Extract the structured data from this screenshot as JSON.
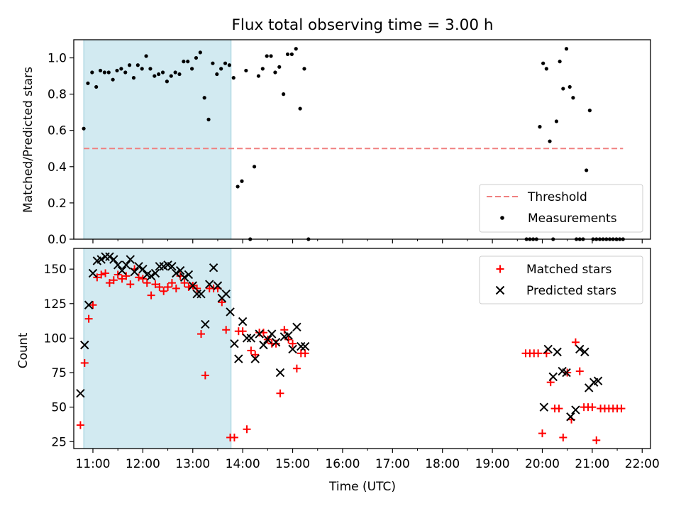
{
  "figure": {
    "title": "Flux total observing time = 3.00 h",
    "xlabel": "Time (UTC)"
  },
  "colors": {
    "band": "#add8e6",
    "threshold": "#f08080",
    "measurements": "#000000",
    "matched": "#ff0000",
    "predicted": "#000000"
  },
  "chart_data": [
    {
      "type": "scatter",
      "ylabel": "Matched/Predicted stars",
      "ylim": [
        0,
        1.1
      ],
      "yticks": [
        0.0,
        0.2,
        0.4,
        0.6,
        0.8,
        1.0
      ],
      "ytick_labels": [
        "0.0",
        "0.2",
        "0.4",
        "0.6",
        "0.8",
        "1.0"
      ],
      "xlim": [
        "10:37",
        "22:10"
      ],
      "xticks": [
        "11:00",
        "12:00",
        "13:00",
        "14:00",
        "15:00",
        "16:00",
        "17:00",
        "18:00",
        "19:00",
        "20:00",
        "21:00",
        "22:00"
      ],
      "show_xtick_labels": false,
      "shaded_region": {
        "start": "10:49",
        "end": "13:46"
      },
      "legend_position": "lower right",
      "series": [
        {
          "name": "Threshold",
          "kind": "dashed-line",
          "x": [
            "10:49",
            "21:37"
          ],
          "y": [
            0.5,
            0.5
          ]
        },
        {
          "name": "Measurements",
          "kind": "dots",
          "x": [
            "10:49",
            "10:54",
            "10:59",
            "11:04",
            "11:09",
            "11:14",
            "11:19",
            "11:24",
            "11:29",
            "11:34",
            "11:39",
            "11:44",
            "11:49",
            "11:54",
            "11:59",
            "12:04",
            "12:09",
            "12:14",
            "12:19",
            "12:24",
            "12:29",
            "12:34",
            "12:39",
            "12:44",
            "12:49",
            "12:54",
            "12:59",
            "13:04",
            "13:09",
            "13:14",
            "13:19",
            "13:24",
            "13:29",
            "13:34",
            "13:39",
            "13:44",
            "13:49",
            "13:54",
            "13:59",
            "14:04",
            "14:09",
            "14:14",
            "14:19",
            "14:24",
            "14:29",
            "14:34",
            "14:39",
            "14:44",
            "14:49",
            "14:54",
            "14:59",
            "15:04",
            "15:09",
            "15:14",
            "15:19",
            "19:41",
            "19:45",
            "19:49",
            "19:53",
            "19:57",
            "20:01",
            "20:05",
            "20:09",
            "20:13",
            "20:17",
            "20:21",
            "20:25",
            "20:29",
            "20:33",
            "20:37",
            "20:41",
            "20:45",
            "20:49",
            "20:53",
            "20:57",
            "21:01",
            "21:05",
            "21:09",
            "21:13",
            "21:17",
            "21:21",
            "21:25",
            "21:29",
            "21:33",
            "21:37"
          ],
          "y": [
            0.61,
            0.86,
            0.92,
            0.84,
            0.93,
            0.92,
            0.92,
            0.88,
            0.93,
            0.94,
            0.92,
            0.96,
            0.89,
            0.96,
            0.94,
            1.01,
            0.94,
            0.9,
            0.91,
            0.92,
            0.87,
            0.9,
            0.92,
            0.91,
            0.98,
            0.98,
            0.94,
            1.0,
            1.03,
            0.78,
            0.66,
            0.97,
            0.91,
            0.94,
            0.97,
            0.96,
            0.89,
            0.29,
            0.32,
            0.93,
            0.0,
            0.4,
            0.9,
            0.94,
            1.01,
            1.01,
            0.92,
            0.95,
            0.8,
            1.02,
            1.02,
            1.05,
            0.72,
            0.94,
            0.0,
            0.0,
            0.0,
            0.0,
            0.0,
            0.62,
            0.97,
            0.94,
            0.54,
            0.0,
            0.65,
            0.98,
            0.83,
            1.05,
            0.84,
            0.78,
            0.0,
            0.0,
            0.0,
            0.38,
            0.71,
            0.0,
            0.0,
            0.0,
            0.0,
            0.0,
            0.0,
            0.0,
            0.0,
            0.0,
            0.0
          ]
        }
      ]
    },
    {
      "type": "scatter",
      "ylabel": "Count",
      "ylim": [
        20,
        165
      ],
      "yticks": [
        25,
        50,
        75,
        100,
        125,
        150
      ],
      "ytick_labels": [
        "25",
        "50",
        "75",
        "100",
        "125",
        "150"
      ],
      "xlim": [
        "10:37",
        "22:10"
      ],
      "xticks": [
        "11:00",
        "12:00",
        "13:00",
        "14:00",
        "15:00",
        "16:00",
        "17:00",
        "18:00",
        "19:00",
        "20:00",
        "21:00",
        "22:00"
      ],
      "xtick_labels": [
        "11:00",
        "12:00",
        "13:00",
        "14:00",
        "15:00",
        "16:00",
        "17:00",
        "18:00",
        "19:00",
        "20:00",
        "21:00",
        "22:00"
      ],
      "shaded_region": {
        "start": "10:49",
        "end": "13:46"
      },
      "legend_position": "upper right",
      "series": [
        {
          "name": "Matched stars",
          "marker": "plus",
          "x": [
            "10:45",
            "10:50",
            "10:55",
            "11:00",
            "11:05",
            "11:10",
            "11:15",
            "11:20",
            "11:25",
            "11:30",
            "11:35",
            "11:40",
            "11:45",
            "11:50",
            "11:55",
            "12:00",
            "12:05",
            "12:10",
            "12:15",
            "12:20",
            "12:25",
            "12:30",
            "12:35",
            "12:40",
            "12:45",
            "12:50",
            "12:55",
            "13:00",
            "13:05",
            "13:10",
            "13:15",
            "13:20",
            "13:25",
            "13:30",
            "13:35",
            "13:40",
            "13:45",
            "13:50",
            "13:55",
            "14:00",
            "14:05",
            "14:10",
            "14:15",
            "14:20",
            "14:25",
            "14:30",
            "14:35",
            "14:40",
            "14:45",
            "14:50",
            "14:55",
            "15:00",
            "15:05",
            "15:10",
            "15:15",
            "19:40",
            "19:45",
            "19:50",
            "19:55",
            "20:00",
            "20:05",
            "20:10",
            "20:15",
            "20:20",
            "20:25",
            "20:30",
            "20:35",
            "20:40",
            "20:45",
            "20:50",
            "20:55",
            "21:00",
            "21:05",
            "21:10",
            "21:15",
            "21:20",
            "21:25",
            "21:30",
            "21:35"
          ],
          "y": [
            37,
            82,
            114,
            124,
            144,
            146,
            147,
            140,
            142,
            146,
            143,
            145,
            139,
            150,
            144,
            143,
            140,
            131,
            139,
            137,
            134,
            137,
            140,
            136,
            145,
            140,
            137,
            138,
            136,
            103,
            73,
            136,
            136,
            136,
            126,
            106,
            28,
            28,
            105,
            105,
            34,
            91,
            88,
            104,
            104,
            99,
            96,
            96,
            60,
            106,
            99,
            96,
            78,
            89,
            89,
            89,
            89,
            89,
            89,
            31,
            89,
            68,
            49,
            49,
            28,
            75,
            41,
            97,
            76,
            50,
            50,
            50,
            26,
            49,
            49,
            49,
            49,
            49,
            49
          ],
          "x_extra_note": ""
        },
        {
          "name": "Predicted stars",
          "marker": "x",
          "x": [
            "10:45",
            "10:50",
            "10:55",
            "11:00",
            "11:05",
            "11:10",
            "11:15",
            "11:20",
            "11:25",
            "11:30",
            "11:35",
            "11:40",
            "11:45",
            "11:50",
            "11:55",
            "12:00",
            "12:05",
            "12:10",
            "12:15",
            "12:20",
            "12:25",
            "12:30",
            "12:35",
            "12:40",
            "12:45",
            "12:50",
            "12:55",
            "13:00",
            "13:05",
            "13:10",
            "13:15",
            "13:20",
            "13:25",
            "13:30",
            "13:35",
            "13:40",
            "13:45",
            "13:50",
            "13:55",
            "14:00",
            "14:05",
            "14:10",
            "14:15",
            "14:20",
            "14:25",
            "14:30",
            "14:35",
            "14:40",
            "14:45",
            "14:50",
            "14:55",
            "15:00",
            "15:05",
            "15:10",
            "15:15",
            "20:02",
            "20:07",
            "20:13",
            "20:18",
            "20:24",
            "20:29",
            "20:34",
            "20:40",
            "20:45",
            "20:51",
            "20:56",
            "21:02",
            "21:07"
          ],
          "y": [
            60,
            95,
            124,
            147,
            156,
            157,
            159,
            159,
            157,
            153,
            149,
            153,
            157,
            148,
            152,
            150,
            146,
            145,
            147,
            152,
            152,
            153,
            152,
            147,
            149,
            144,
            146,
            138,
            132,
            132,
            110,
            139,
            151,
            138,
            129,
            132,
            119,
            96,
            85,
            112,
            100,
            100,
            85,
            103,
            95,
            99,
            103,
            97,
            75,
            101,
            102,
            92,
            108,
            94,
            94,
            50,
            92,
            72,
            90,
            76,
            75,
            43,
            48,
            92,
            90,
            64,
            68,
            69
          ]
        }
      ]
    }
  ]
}
